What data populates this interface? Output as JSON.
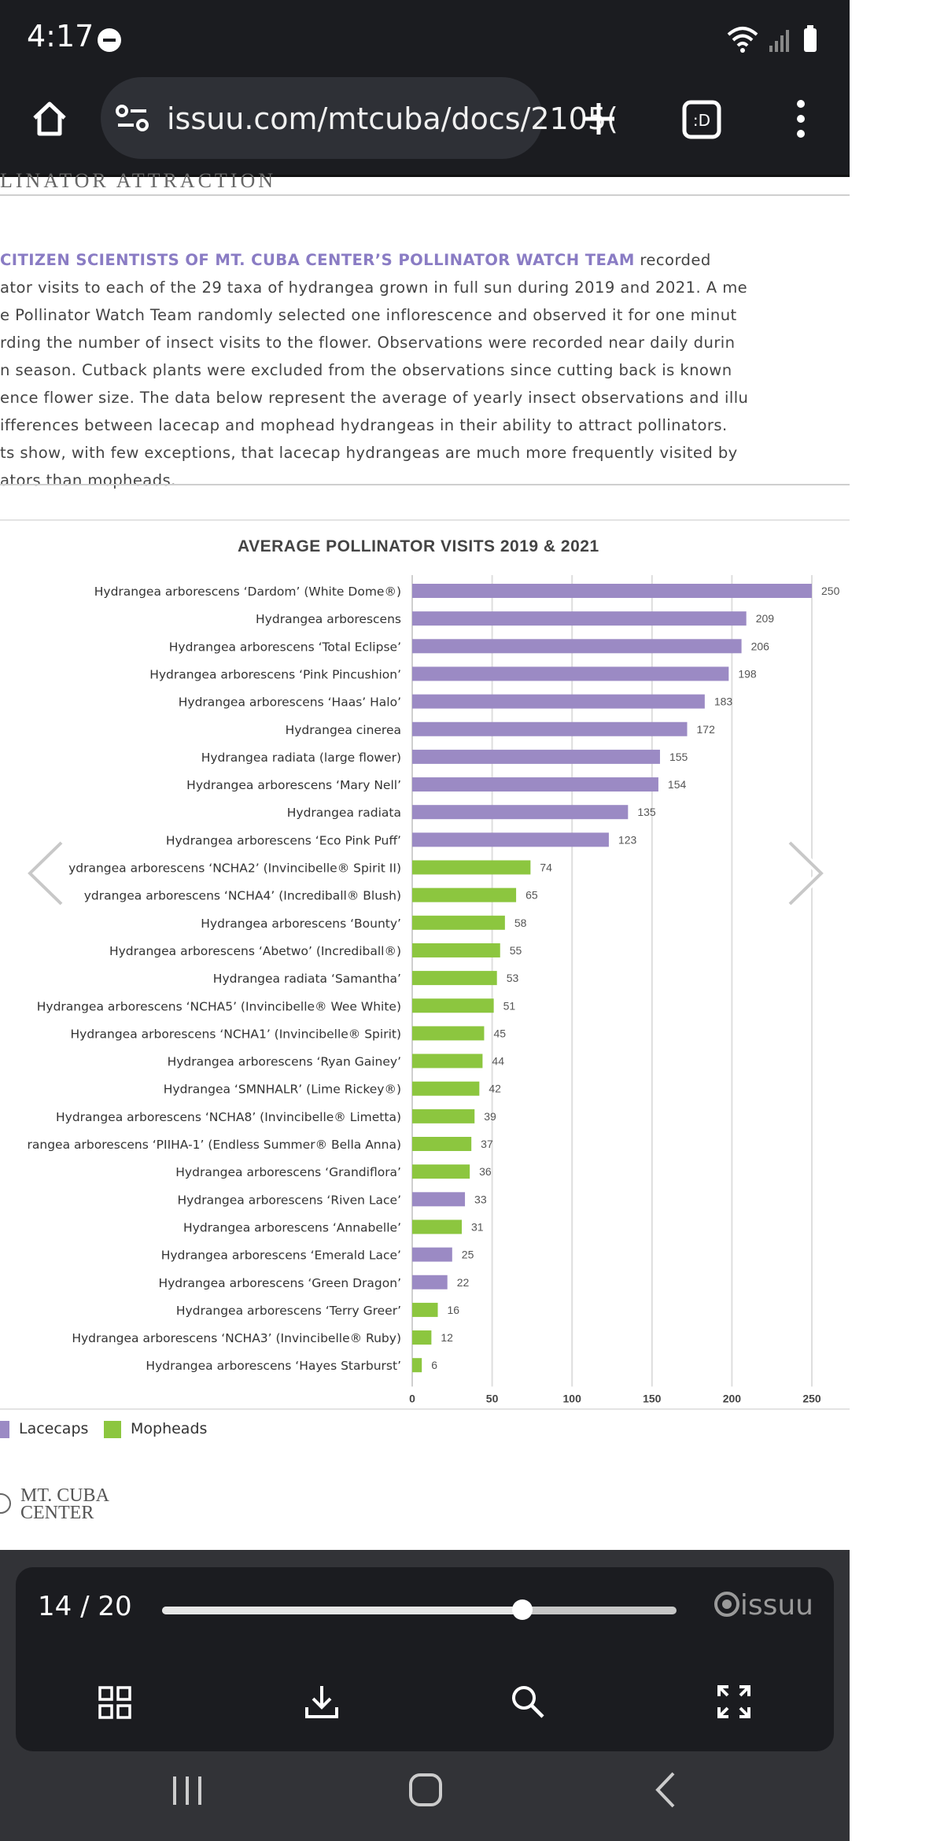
{
  "status_bar": {
    "time": "4:17"
  },
  "browser": {
    "url": "issuu.com/mtcuba/docs/2105("
  },
  "page": {
    "clipped_heading": "LINATOR ATTRACTION",
    "intro_lead": "CITIZEN SCIENTISTS OF MT. CUBA CENTER’S POLLINATOR WATCH TEAM",
    "intro_line_1_rest": " recorded",
    "intro_lines": [
      "ator visits to each of the 29 taxa of hydrangea grown in full sun during 2019 and 2021. A me",
      "e Pollinator Watch Team randomly selected one inflorescence and observed it for one minut",
      "rding the number of insect visits to the flower. Observations were recorded near daily durin",
      "n season. Cutback plants were excluded from the observations since cutting back is known",
      "ence flower size. The data below represent the average of yearly insect observations and illu",
      "ifferences between lacecap and mophead hydrangeas in their ability to attract pollinators.",
      "ts show, with few exceptions, that lacecap hydrangeas are much more frequently visited by",
      "ators than mopheads."
    ],
    "logo_line_1": "MT. CUBA",
    "logo_line_2": "CENTER"
  },
  "chart_data": {
    "type": "bar",
    "orientation": "horizontal",
    "title": "AVERAGE POLLINATOR VISITS 2019 & 2021",
    "xlim": [
      0,
      250
    ],
    "ticks": [
      0,
      50,
      100,
      150,
      200,
      250
    ],
    "grid": true,
    "legend": {
      "placement": "bottom-left",
      "entries": [
        {
          "name": "Lacecaps",
          "color": "#9b8ac4"
        },
        {
          "name": "Mopheads",
          "color": "#8cc63f"
        }
      ]
    },
    "colors": {
      "Lacecaps": "#9b8ac4",
      "Mopheads": "#8cc63f"
    },
    "bars": [
      {
        "label": "Hydrangea arborescens ‘Dardom’ (White Dome®)",
        "value": 250,
        "group": "Lacecaps"
      },
      {
        "label": "Hydrangea arborescens",
        "value": 209,
        "group": "Lacecaps"
      },
      {
        "label": "Hydrangea arborescens ‘Total Eclipse’",
        "value": 206,
        "group": "Lacecaps"
      },
      {
        "label": "Hydrangea arborescens ‘Pink Pincushion’",
        "value": 198,
        "group": "Lacecaps"
      },
      {
        "label": "Hydrangea arborescens ‘Haas’ Halo’",
        "value": 183,
        "group": "Lacecaps"
      },
      {
        "label": "Hydrangea cinerea",
        "value": 172,
        "group": "Lacecaps"
      },
      {
        "label": "Hydrangea radiata (large flower)",
        "value": 155,
        "group": "Lacecaps"
      },
      {
        "label": "Hydrangea arborescens ‘Mary Nell’",
        "value": 154,
        "group": "Lacecaps"
      },
      {
        "label": "Hydrangea radiata",
        "value": 135,
        "group": "Lacecaps"
      },
      {
        "label": "Hydrangea arborescens ‘Eco Pink Puff’",
        "value": 123,
        "group": "Lacecaps"
      },
      {
        "label": "ydrangea arborescens ‘NCHA2’ (Invincibelle® Spirit II)",
        "value": 74,
        "group": "Mopheads"
      },
      {
        "label": "ydrangea arborescens ‘NCHA4’ (Incrediball® Blush)",
        "value": 65,
        "group": "Mopheads"
      },
      {
        "label": "Hydrangea arborescens ‘Bounty’",
        "value": 58,
        "group": "Mopheads"
      },
      {
        "label": "Hydrangea arborescens ‘Abetwo’ (Incrediball®)",
        "value": 55,
        "group": "Mopheads"
      },
      {
        "label": "Hydrangea radiata ‘Samantha’",
        "value": 53,
        "group": "Mopheads"
      },
      {
        "label": "Hydrangea arborescens ‘NCHA5’ (Invincibelle® Wee White)",
        "value": 51,
        "group": "Mopheads"
      },
      {
        "label": "Hydrangea arborescens ‘NCHA1’ (Invincibelle® Spirit)",
        "value": 45,
        "group": "Mopheads"
      },
      {
        "label": "Hydrangea arborescens ‘Ryan Gainey’",
        "value": 44,
        "group": "Mopheads"
      },
      {
        "label": "Hydrangea ‘SMNHALR’ (Lime Rickey®)",
        "value": 42,
        "group": "Mopheads"
      },
      {
        "label": "Hydrangea arborescens ‘NCHA8’ (Invincibelle® Limetta)",
        "value": 39,
        "group": "Mopheads"
      },
      {
        "label": "rangea arborescens ‘PIIHA-1’ (Endless Summer® Bella Anna)",
        "value": 37,
        "group": "Mopheads"
      },
      {
        "label": "Hydrangea arborescens ‘Grandiflora’",
        "value": 36,
        "group": "Mopheads"
      },
      {
        "label": "Hydrangea arborescens ‘Riven Lace’",
        "value": 33,
        "group": "Lacecaps"
      },
      {
        "label": "Hydrangea arborescens ‘Annabelle’",
        "value": 31,
        "group": "Mopheads"
      },
      {
        "label": "Hydrangea arborescens ‘Emerald Lace’",
        "value": 25,
        "group": "Lacecaps"
      },
      {
        "label": "Hydrangea arborescens ‘Green Dragon’",
        "value": 22,
        "group": "Lacecaps"
      },
      {
        "label": "Hydrangea arborescens ‘Terry Greer’",
        "value": 16,
        "group": "Mopheads"
      },
      {
        "label": "Hydrangea arborescens ‘NCHA3’ (Invincibelle® Ruby)",
        "value": 12,
        "group": "Mopheads"
      },
      {
        "label": "Hydrangea arborescens ‘Hayes Starburst’",
        "value": 6,
        "group": "Mopheads"
      }
    ]
  },
  "viewer": {
    "page_indicator": "14 / 20",
    "current_page": 14,
    "total_pages": 20,
    "progress_fraction": 0.7,
    "brand": "issuu",
    "buttons": [
      "grid-icon",
      "download-icon",
      "search-icon",
      "fullscreen-icon"
    ]
  }
}
